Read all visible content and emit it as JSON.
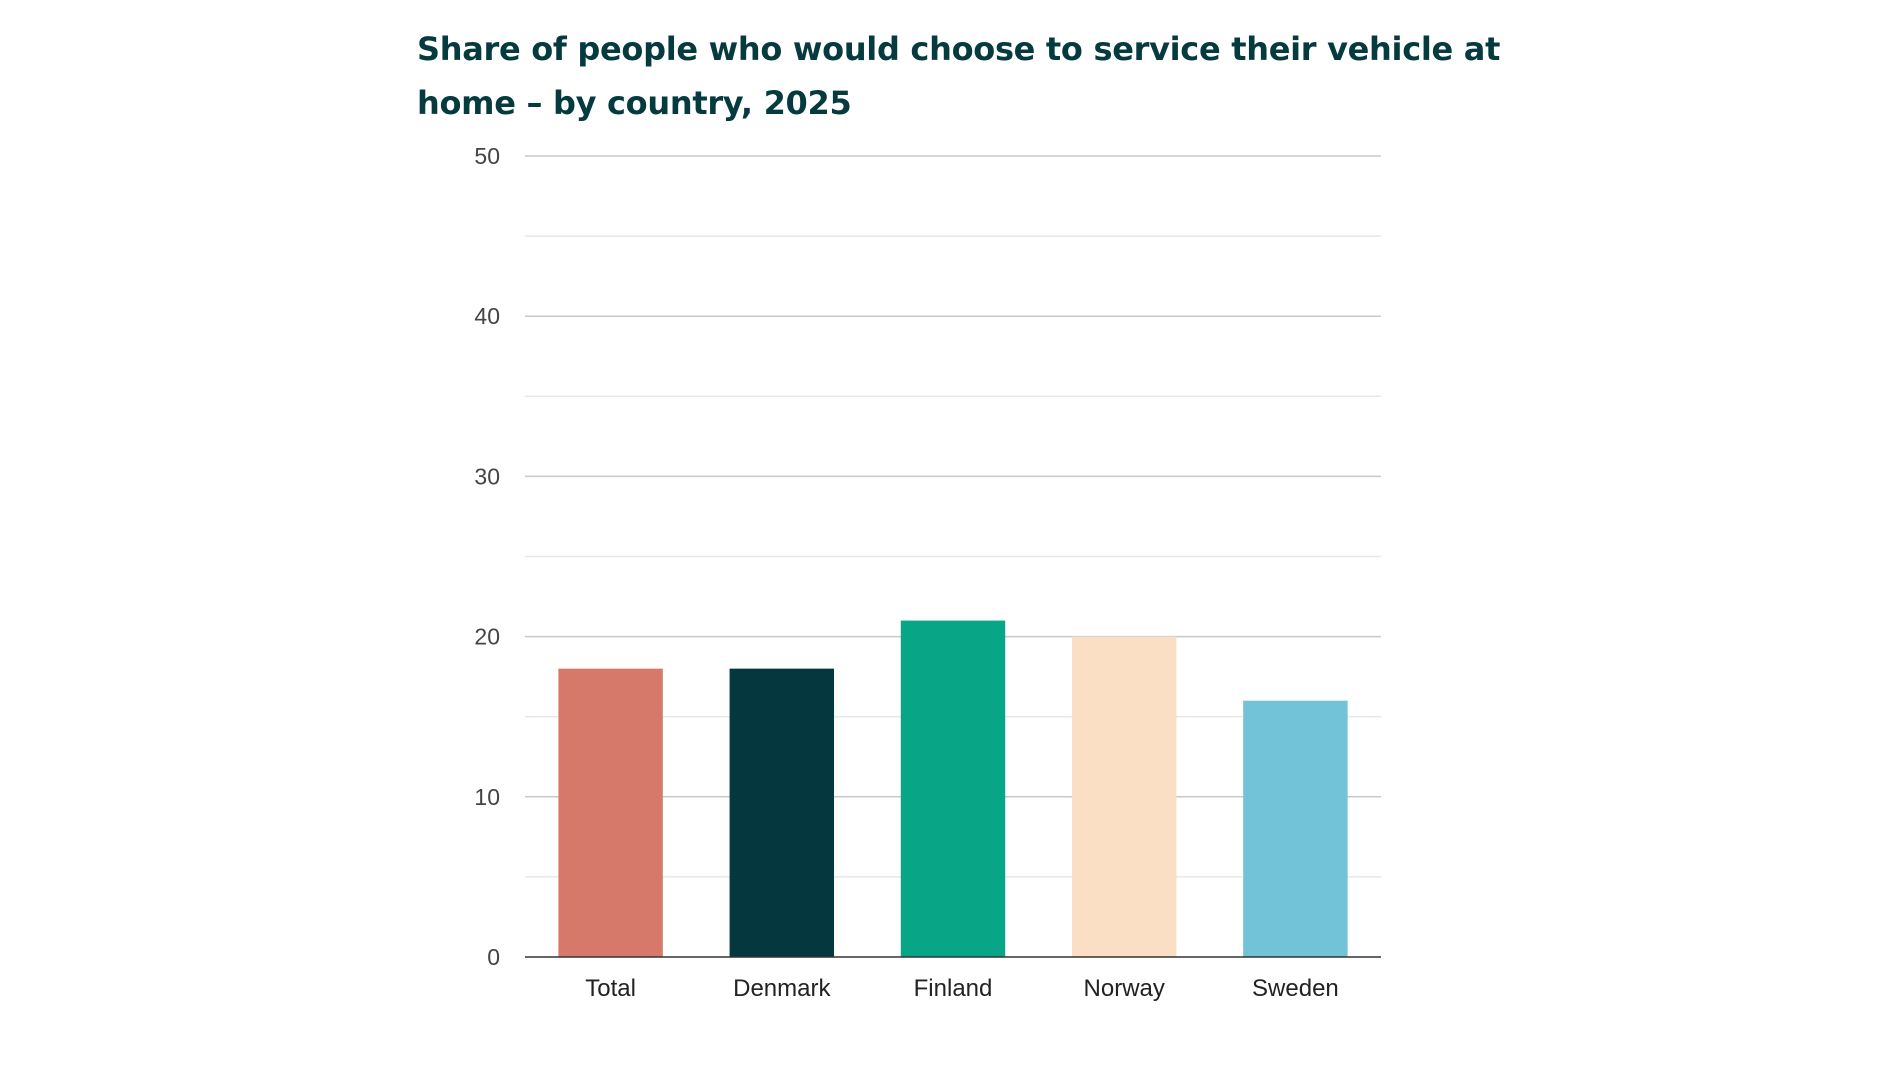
{
  "chart_data": {
    "type": "bar",
    "title": "Share of people who would choose to service their vehicle at home – by country, 2025",
    "xlabel": "",
    "ylabel": "",
    "ylim": [
      0,
      50
    ],
    "yticks": [
      "0",
      "10",
      "20",
      "30",
      "40",
      "50"
    ],
    "grid": true,
    "categories": [
      "Total",
      "Denmark",
      "Finland",
      "Norway",
      "Sweden"
    ],
    "values": [
      18,
      18,
      21,
      20,
      16
    ],
    "colors": [
      "#d6796b",
      "#04373e",
      "#08a687",
      "#fadfc5",
      "#72c2d8"
    ]
  }
}
